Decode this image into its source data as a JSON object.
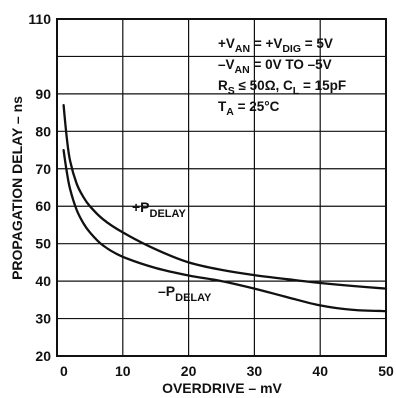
{
  "chart_data": {
    "type": "line",
    "title": "",
    "xlabel": "OVERDRIVE – mV",
    "ylabel": "PROPAGATION DELAY – ns",
    "xlim": [
      0,
      50
    ],
    "ylim": [
      20,
      110
    ],
    "xticks": [
      "0",
      "10",
      "20",
      "30",
      "40",
      "50"
    ],
    "yticks": [
      "20",
      "30",
      "40",
      "50",
      "60",
      "70",
      "80",
      "90",
      "110"
    ],
    "grid": true,
    "legend": "labels on curves",
    "series": [
      {
        "name": "+PDELAY",
        "label_main": "+P",
        "label_sub": "DELAY",
        "x": [
          1,
          1.5,
          2,
          3,
          4,
          5,
          7,
          10,
          15,
          20,
          25,
          30,
          35,
          40,
          45,
          50
        ],
        "y": [
          87,
          78,
          72,
          66,
          62.5,
          60,
          56.5,
          53,
          48.5,
          45,
          43,
          41.6,
          40.5,
          39.5,
          38.7,
          38
        ]
      },
      {
        "name": "-PDELAY",
        "label_main": "–P",
        "label_sub": "DELAY",
        "x": [
          1,
          1.5,
          2,
          3,
          4,
          5,
          7,
          10,
          15,
          20,
          25,
          30,
          35,
          40,
          45,
          50
        ],
        "y": [
          75,
          69,
          64.5,
          59,
          55.5,
          53,
          49.5,
          46.5,
          43.5,
          41.5,
          40,
          38,
          35.7,
          33.5,
          32.3,
          32
        ]
      }
    ],
    "annotations": [
      {
        "parts": [
          [
            "+V",
            "b"
          ],
          [
            "AN",
            "s"
          ],
          [
            " = +V",
            "b"
          ],
          [
            "DIG",
            "s"
          ],
          [
            " = 5V",
            "b"
          ]
        ]
      },
      {
        "parts": [
          [
            "–V",
            "b"
          ],
          [
            "AN",
            "s"
          ],
          [
            " = 0V TO –5V",
            "b"
          ]
        ]
      },
      {
        "parts": [
          [
            "R",
            "b"
          ],
          [
            "S",
            "s"
          ],
          [
            " ≤ 50Ω, C",
            "b"
          ],
          [
            "L",
            "s"
          ],
          [
            " = 15pF",
            "b"
          ]
        ]
      },
      {
        "parts": [
          [
            "T",
            "b"
          ],
          [
            "A",
            "s"
          ],
          [
            " = 25°C",
            "b"
          ]
        ]
      }
    ]
  }
}
